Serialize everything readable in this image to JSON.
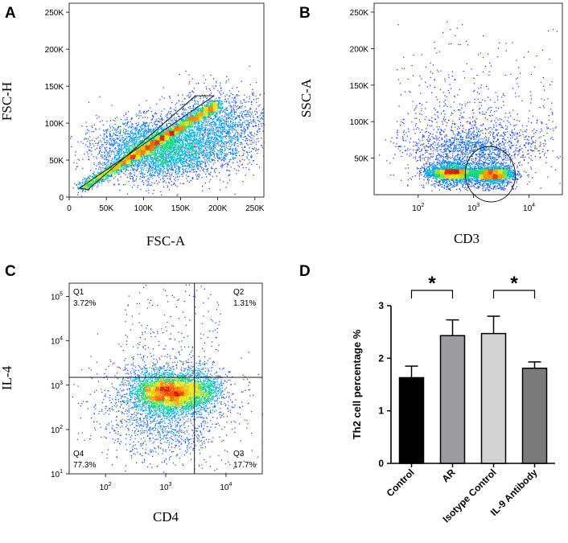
{
  "chart_data": [
    {
      "panel": "A",
      "type": "scatter",
      "xlabel": "FSC-A",
      "ylabel": "FSC-H",
      "xlim": [
        0,
        262144
      ],
      "ylim": [
        0,
        262144
      ],
      "xticks": [
        {
          "v": 0,
          "label": "0"
        },
        {
          "v": 50000,
          "label": "50K"
        },
        {
          "v": 100000,
          "label": "100K"
        },
        {
          "v": 150000,
          "label": "150K"
        },
        {
          "v": 200000,
          "label": "200K"
        },
        {
          "v": 250000,
          "label": "250K"
        }
      ],
      "yticks": [
        {
          "v": 0,
          "label": "0"
        },
        {
          "v": 50000,
          "label": "50K"
        },
        {
          "v": 100000,
          "label": "100K"
        },
        {
          "v": 150000,
          "label": "150K"
        },
        {
          "v": 200000,
          "label": "200K"
        },
        {
          "v": 250000,
          "label": "250K"
        }
      ],
      "gate": [
        [
          14000,
          12000
        ],
        [
          195000,
          137000
        ],
        [
          170000,
          137000
        ],
        [
          25000,
          10000
        ]
      ],
      "populations": [
        {
          "center": [
            120000,
            65000
          ],
          "spread": [
            40000,
            20000
          ],
          "n": 4200
        },
        {
          "center": [
            200000,
            95000
          ],
          "spread": [
            35000,
            25000
          ],
          "n": 1800
        }
      ]
    },
    {
      "panel": "B",
      "type": "scatter",
      "xlabel": "CD3",
      "ylabel": "SSC-A",
      "xscale": "log",
      "xlim": [
        16,
        40000
      ],
      "ylim": [
        0,
        262144
      ],
      "xticks": [
        {
          "v": 100,
          "label": "10",
          "sup": "2"
        },
        {
          "v": 1000,
          "label": "10",
          "sup": "3"
        },
        {
          "v": 10000,
          "label": "10",
          "sup": "4"
        }
      ],
      "yticks": [
        {
          "v": 50000,
          "label": "50K"
        },
        {
          "v": 100000,
          "label": "100K"
        },
        {
          "v": 150000,
          "label": "150K"
        },
        {
          "v": 200000,
          "label": "200K"
        },
        {
          "v": 250000,
          "label": "250K"
        }
      ],
      "gate": {
        "center": [
          2000,
          28000
        ],
        "rx_decades": 0.45,
        "ry": 38000
      },
      "populations": [
        {
          "center": [
            400,
            30000
          ],
          "spread": [
            0.22,
            8000
          ],
          "n": 2800
        },
        {
          "center": [
            2200,
            28000
          ],
          "spread": [
            0.18,
            8000
          ],
          "n": 2400
        },
        {
          "center": [
            900,
            60000
          ],
          "spread": [
            0.55,
            35000
          ],
          "n": 1500
        }
      ]
    },
    {
      "panel": "C",
      "type": "scatter",
      "xlabel": "CD4",
      "ylabel": "IL-4",
      "xscale": "log",
      "yscale": "log",
      "xlim": [
        25,
        40000
      ],
      "ylim": [
        10,
        200000
      ],
      "xticks": [
        {
          "v": 100,
          "label": "10",
          "sup": "2"
        },
        {
          "v": 1000,
          "label": "10",
          "sup": "3"
        },
        {
          "v": 10000,
          "label": "10",
          "sup": "4"
        }
      ],
      "yticks": [
        {
          "v": 10,
          "label": "10",
          "sup": "1"
        },
        {
          "v": 100,
          "label": "10",
          "sup": "2"
        },
        {
          "v": 1000,
          "label": "10",
          "sup": "3"
        },
        {
          "v": 10000,
          "label": "10",
          "sup": "4"
        },
        {
          "v": 100000,
          "label": "10",
          "sup": "5"
        }
      ],
      "quadrant_x": 3000,
      "quadrant_y": 1500,
      "quadrants": [
        {
          "name": "Q1",
          "value": "3.72%",
          "pos": "top-left"
        },
        {
          "name": "Q2",
          "value": "1.31%",
          "pos": "top-right"
        },
        {
          "name": "Q3",
          "value": "17.7%",
          "pos": "bottom-right"
        },
        {
          "name": "Q4",
          "value": "77.3%",
          "pos": "bottom-left"
        }
      ],
      "populations": [
        {
          "center": [
            1000,
            700
          ],
          "spread": [
            0.28,
            0.22
          ],
          "n": 3200
        },
        {
          "center": [
            3500,
            800
          ],
          "spread": [
            0.2,
            0.2
          ],
          "n": 900
        },
        {
          "center": [
            1000,
            300
          ],
          "spread": [
            0.55,
            0.6
          ],
          "n": 1800
        }
      ]
    },
    {
      "panel": "D",
      "type": "bar",
      "ylabel": "Th2 cell percentage %",
      "ylim": [
        0,
        3
      ],
      "yticks": [
        0,
        1,
        2,
        3
      ],
      "categories": [
        "Control",
        "AR",
        "Isotype Control",
        "IL-9 Antibody"
      ],
      "values": [
        1.63,
        2.43,
        2.47,
        1.81
      ],
      "errors": [
        0.22,
        0.3,
        0.33,
        0.12
      ],
      "colors": [
        "#000000",
        "#9b9ba0",
        "#d2d2d2",
        "#7a7a7a"
      ],
      "significance": [
        {
          "from": 0,
          "to": 1,
          "label": "*"
        },
        {
          "from": 2,
          "to": 3,
          "label": "*"
        }
      ]
    }
  ]
}
